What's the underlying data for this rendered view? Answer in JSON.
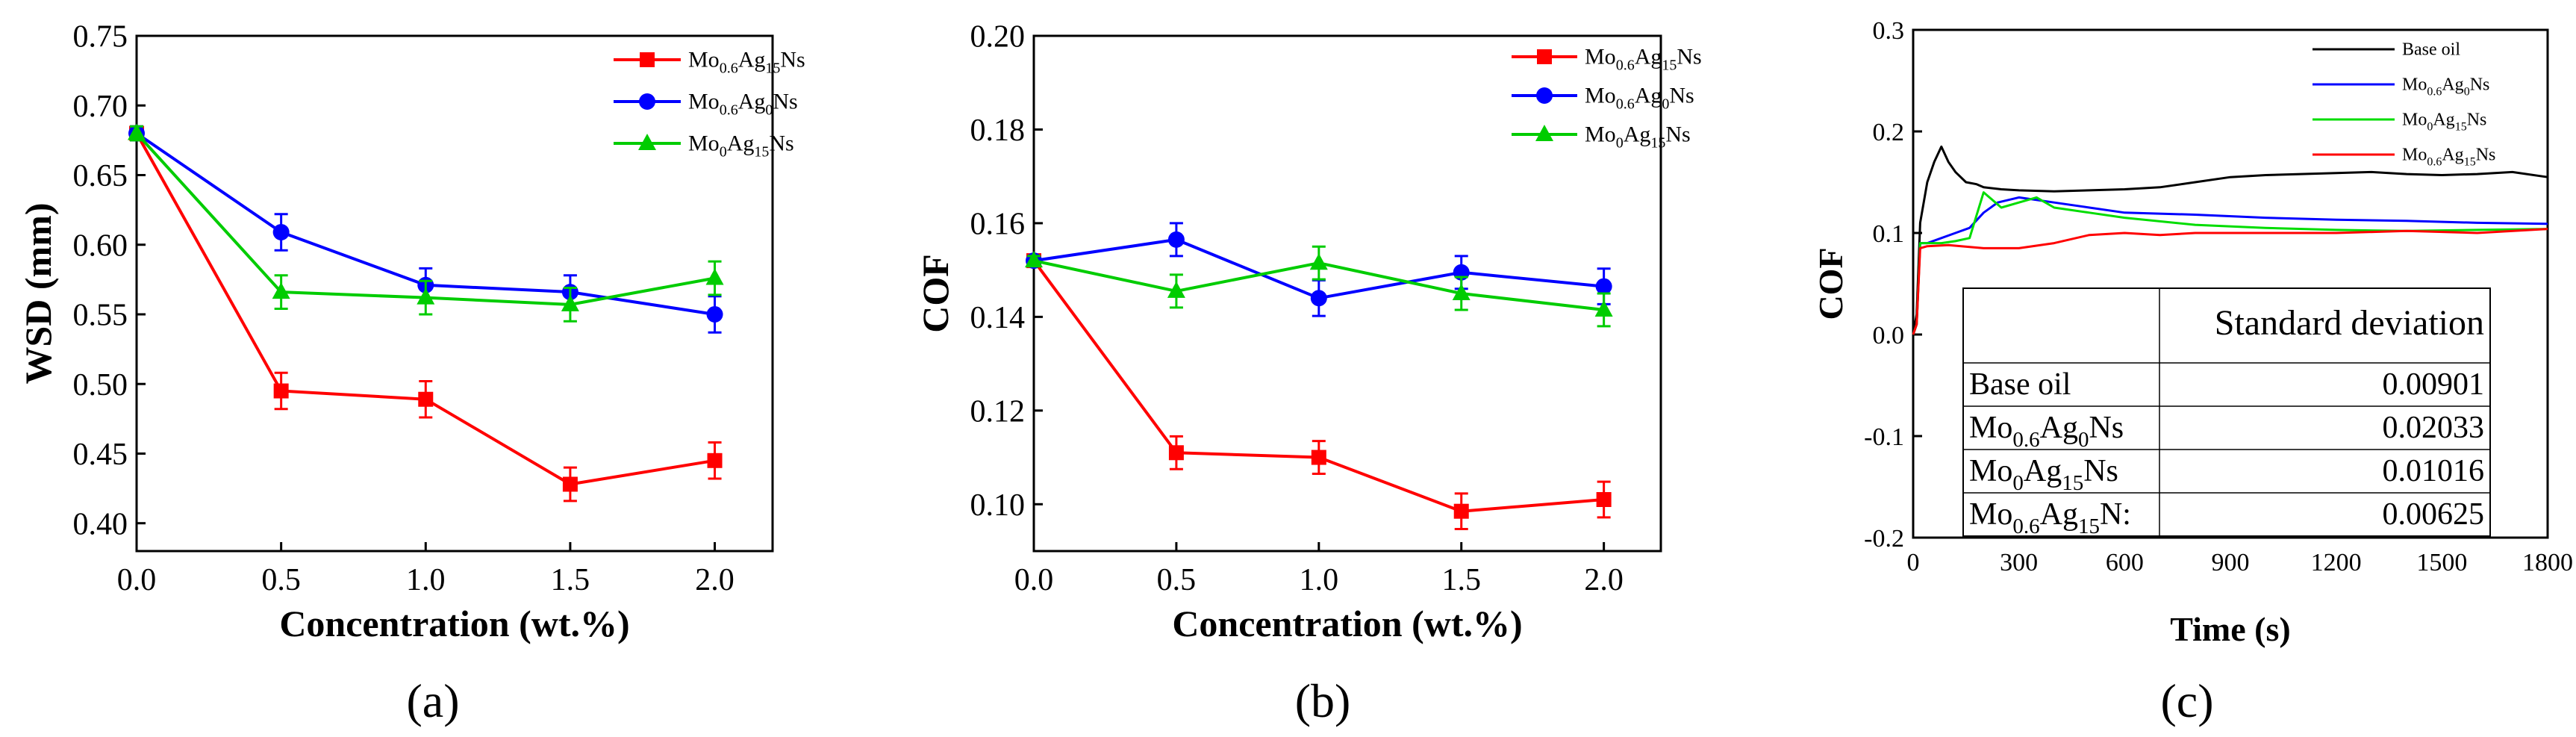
{
  "chart_data": [
    {
      "type": "line",
      "panel_label": "(a)",
      "xlabel": "Concentration (wt.%)",
      "ylabel": "WSD (mm)",
      "xlim": [
        0.0,
        2.2
      ],
      "ylim": [
        0.38,
        0.75
      ],
      "xticks": [
        0.0,
        0.5,
        1.0,
        1.5,
        2.0
      ],
      "xtick_labels": [
        "0.0",
        "0.5",
        "1.0",
        "1.5",
        "2.0"
      ],
      "yticks": [
        0.4,
        0.45,
        0.5,
        0.55,
        0.6,
        0.65,
        0.7,
        0.75
      ],
      "ytick_labels": [
        "0.40",
        "0.45",
        "0.50",
        "0.55",
        "0.60",
        "0.65",
        "0.70",
        "0.75"
      ],
      "legend": "top-right",
      "series": [
        {
          "name": "Mo0.6Ag15Ns",
          "base": "Mo",
          "s1": "0.6",
          "mid": "Ag",
          "s2": "15",
          "tail": "Ns",
          "color": "#ff0000",
          "marker": "square",
          "x": [
            0.0,
            0.5,
            1.0,
            1.5,
            2.0
          ],
          "values": [
            0.68,
            0.495,
            0.489,
            0.428,
            0.445
          ],
          "errors": [
            0.005,
            0.013,
            0.013,
            0.012,
            0.013
          ]
        },
        {
          "name": "Mo0.6Ag0Ns",
          "base": "Mo",
          "s1": "0.6",
          "mid": "Ag",
          "s2": "0",
          "tail": "Ns",
          "color": "#0000ff",
          "marker": "circle",
          "x": [
            0.0,
            0.5,
            1.0,
            1.5,
            2.0
          ],
          "values": [
            0.68,
            0.609,
            0.571,
            0.566,
            0.55
          ],
          "errors": [
            0.005,
            0.013,
            0.012,
            0.012,
            0.013
          ]
        },
        {
          "name": "Mo0Ag15Ns",
          "base": "Mo",
          "s1": "0",
          "mid": "Ag",
          "s2": "15",
          "tail": "Ns",
          "color": "#00cc00",
          "marker": "triangle",
          "x": [
            0.0,
            0.5,
            1.0,
            1.5,
            2.0
          ],
          "values": [
            0.68,
            0.566,
            0.562,
            0.557,
            0.576
          ],
          "errors": [
            0.005,
            0.012,
            0.012,
            0.012,
            0.012
          ]
        }
      ]
    },
    {
      "type": "line",
      "panel_label": "(b)",
      "xlabel": "Concentration (wt.%)",
      "ylabel": "COF",
      "xlim": [
        0.0,
        2.2
      ],
      "ylim": [
        0.09,
        0.2
      ],
      "xticks": [
        0.0,
        0.5,
        1.0,
        1.5,
        2.0
      ],
      "xtick_labels": [
        "0.0",
        "0.5",
        "1.0",
        "1.5",
        "2.0"
      ],
      "yticks": [
        0.1,
        0.12,
        0.14,
        0.16,
        0.18,
        0.2
      ],
      "ytick_labels": [
        "0.10",
        "0.12",
        "0.14",
        "0.16",
        "0.18",
        "0.20"
      ],
      "legend": "top-right",
      "series": [
        {
          "name": "Mo0.6Ag15Ns",
          "base": "Mo",
          "s1": "0.6",
          "mid": "Ag",
          "s2": "15",
          "tail": "Ns",
          "color": "#ff0000",
          "marker": "square",
          "x": [
            0.0,
            0.5,
            1.0,
            1.5,
            2.0
          ],
          "values": [
            0.152,
            0.111,
            0.11,
            0.0985,
            0.101
          ],
          "errors": [
            0.001,
            0.0035,
            0.0035,
            0.0038,
            0.0038
          ]
        },
        {
          "name": "Mo0.6Ag0Ns",
          "base": "Mo",
          "s1": "0.6",
          "mid": "Ag",
          "s2": "0",
          "tail": "Ns",
          "color": "#0000ff",
          "marker": "circle",
          "x": [
            0.0,
            0.5,
            1.0,
            1.5,
            2.0
          ],
          "values": [
            0.152,
            0.1565,
            0.144,
            0.1495,
            0.1465
          ],
          "errors": [
            0.001,
            0.0035,
            0.0038,
            0.0035,
            0.0038
          ]
        },
        {
          "name": "Mo0Ag15Ns",
          "base": "Mo",
          "s1": "0",
          "mid": "Ag",
          "s2": "15",
          "tail": "Ns",
          "color": "#00cc00",
          "marker": "triangle",
          "x": [
            0.0,
            0.5,
            1.0,
            1.5,
            2.0
          ],
          "values": [
            0.152,
            0.1455,
            0.1515,
            0.145,
            0.1415
          ],
          "errors": [
            0.001,
            0.0035,
            0.0035,
            0.0035,
            0.0035
          ]
        }
      ]
    },
    {
      "type": "line",
      "panel_label": "(c)",
      "xlabel": "Time (s)",
      "ylabel": "COF",
      "xlim": [
        0,
        1800
      ],
      "ylim": [
        -0.2,
        0.3
      ],
      "xticks": [
        0,
        300,
        600,
        900,
        1200,
        1500,
        1800
      ],
      "xtick_labels": [
        "0",
        "300",
        "600",
        "900",
        "1200",
        "1500",
        "1800"
      ],
      "yticks": [
        -0.2,
        -0.1,
        0.0,
        0.1,
        0.2,
        0.3
      ],
      "ytick_labels": [
        "-0.2",
        "-0.1",
        "0.0",
        "0.1",
        "0.2",
        "0.3"
      ],
      "legend": "top-right",
      "series": [
        {
          "name": "Base oil",
          "color": "#000000",
          "x": [
            0,
            10,
            20,
            40,
            60,
            80,
            100,
            120,
            150,
            180,
            200,
            250,
            300,
            400,
            500,
            600,
            700,
            800,
            900,
            1000,
            1100,
            1200,
            1300,
            1400,
            1500,
            1600,
            1700,
            1800
          ],
          "values": [
            0,
            0.02,
            0.11,
            0.15,
            0.17,
            0.185,
            0.17,
            0.16,
            0.15,
            0.148,
            0.145,
            0.143,
            0.142,
            0.141,
            0.142,
            0.143,
            0.145,
            0.15,
            0.155,
            0.157,
            0.158,
            0.159,
            0.16,
            0.158,
            0.157,
            0.158,
            0.16,
            0.155
          ]
        },
        {
          "name": "Mo0.6Ag0Ns",
          "base": "Mo",
          "s1": "0.6",
          "mid": "Ag",
          "s2": "0",
          "tail": "Ns",
          "color": "#0000ff",
          "x": [
            0,
            10,
            20,
            40,
            80,
            120,
            160,
            200,
            240,
            300,
            400,
            500,
            600,
            800,
            1000,
            1200,
            1400,
            1600,
            1800
          ],
          "values": [
            0,
            0.01,
            0.09,
            0.09,
            0.095,
            0.1,
            0.105,
            0.12,
            0.13,
            0.135,
            0.13,
            0.125,
            0.12,
            0.118,
            0.115,
            0.113,
            0.112,
            0.11,
            0.109
          ]
        },
        {
          "name": "Mo0Ag15Ns",
          "base": "Mo",
          "s1": "0",
          "mid": "Ag",
          "s2": "15",
          "tail": "Ns",
          "color": "#00dd00",
          "x": [
            0,
            10,
            20,
            40,
            80,
            120,
            160,
            200,
            250,
            300,
            350,
            400,
            500,
            600,
            800,
            1000,
            1200,
            1400,
            1600,
            1800
          ],
          "values": [
            0,
            0.01,
            0.09,
            0.09,
            0.09,
            0.092,
            0.095,
            0.14,
            0.125,
            0.13,
            0.135,
            0.125,
            0.12,
            0.115,
            0.108,
            0.105,
            0.103,
            0.102,
            0.103,
            0.104
          ]
        },
        {
          "name": "Mo0.6Ag15Ns",
          "base": "Mo",
          "s1": "0.6",
          "mid": "Ag",
          "s2": "15",
          "tail": "Ns",
          "color": "#ff0000",
          "x": [
            0,
            10,
            20,
            40,
            100,
            200,
            300,
            400,
            500,
            600,
            700,
            800,
            1000,
            1200,
            1400,
            1600,
            1800
          ],
          "values": [
            0,
            0.01,
            0.085,
            0.087,
            0.088,
            0.085,
            0.085,
            0.09,
            0.098,
            0.1,
            0.098,
            0.1,
            0.1,
            0.1,
            0.102,
            0.1,
            0.104
          ]
        }
      ],
      "table": {
        "header": [
          "",
          "Standard deviation"
        ],
        "rows": [
          {
            "base": "Base oil",
            "s1": "",
            "mid": "",
            "s2": "",
            "tail": "",
            "value": "0.00901"
          },
          {
            "base": "Mo",
            "s1": "0.6",
            "mid": "Ag",
            "s2": "0",
            "tail": "Ns",
            "value": "0.02033"
          },
          {
            "base": "Mo",
            "s1": "0",
            "mid": "Ag",
            "s2": "15",
            "tail": "Ns",
            "value": "0.01016"
          },
          {
            "base": "Mo",
            "s1": "0.6",
            "mid": "Ag",
            "s2": "15",
            "tail": "N:",
            "value": "0.00625"
          }
        ]
      }
    }
  ]
}
